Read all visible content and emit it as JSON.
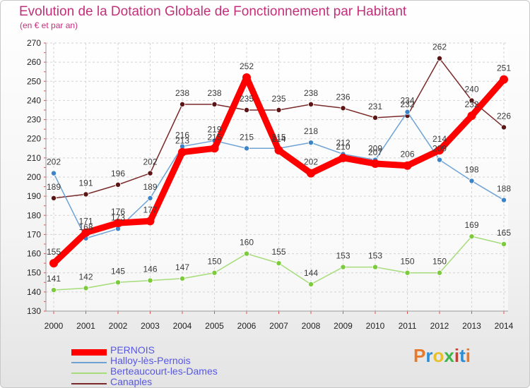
{
  "title": "Evolution de la Dotation Globale de Fonctionnement par Habitant",
  "subtitle": "(en € et par an)",
  "logo_text": "Proxiti",
  "chart_data": {
    "type": "line",
    "title": "Evolution de la Dotation Globale de Fonctionnement par Habitant",
    "subtitle": "(en € et par an)",
    "xlabel": "",
    "ylabel": "",
    "x": [
      2000,
      2001,
      2002,
      2003,
      2004,
      2005,
      2006,
      2007,
      2008,
      2009,
      2010,
      2011,
      2012,
      2013,
      2014
    ],
    "ylim": [
      130,
      270
    ],
    "yticks": [
      130,
      140,
      150,
      160,
      170,
      180,
      190,
      200,
      210,
      220,
      230,
      240,
      250,
      260,
      270
    ],
    "grid": true,
    "legend_position": "bottom-left",
    "series": [
      {
        "name": "Canaples",
        "color": "#7a2a2a",
        "marker": "#5c1515",
        "values": [
          189,
          191,
          196,
          202,
          238,
          238,
          235,
          235,
          238,
          236,
          231,
          232,
          262,
          240,
          226
        ]
      },
      {
        "name": "Berteaucourt-les-Dames",
        "color": "#a6dc7a",
        "marker": "#7ccb3c",
        "values": [
          141,
          142,
          145,
          146,
          147,
          150,
          160,
          155,
          144,
          153,
          153,
          150,
          150,
          169,
          165
        ]
      },
      {
        "name": "Halloy-lès-Pernois",
        "color": "#6fa3d6",
        "marker": "#3c84c8",
        "values": [
          202,
          168,
          173,
          189,
          216,
          219,
          215,
          215,
          218,
          212,
          209,
          234,
          209,
          198,
          188
        ]
      },
      {
        "name": "PERNOIS",
        "color": "#ff0000",
        "marker": "#ff0000",
        "values": [
          155,
          171,
          176,
          177,
          213,
          215,
          252,
          214,
          202,
          210,
          207,
          206,
          214,
          232,
          251
        ]
      }
    ],
    "legend_order": [
      "PERNOIS",
      "Halloy-lès-Pernois",
      "Berteaucourt-les-Dames",
      "Canaples"
    ]
  }
}
